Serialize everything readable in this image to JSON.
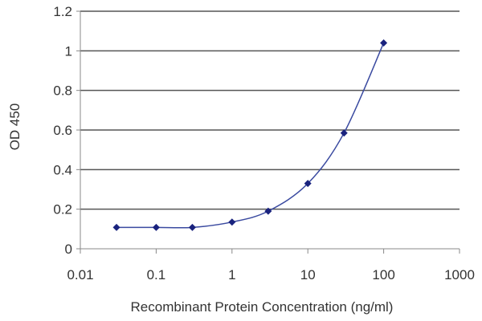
{
  "chart_data": {
    "type": "line",
    "title": "",
    "xlabel": "Recombinant Protein Concentration (ng/ml)",
    "ylabel": "OD 450",
    "x_scale": "log",
    "xlim": [
      0.01,
      1000
    ],
    "ylim": [
      0,
      1.2
    ],
    "x_ticks": [
      "0.01",
      "0.1",
      "1",
      "10",
      "100",
      "1000"
    ],
    "y_ticks": [
      "0",
      "0.2",
      "0.4",
      "0.6",
      "0.8",
      "1",
      "1.2"
    ],
    "grid": "horizontal",
    "series": [
      {
        "x": [
          0.03,
          0.1,
          0.3,
          1,
          3,
          10,
          30,
          100
        ],
        "y": [
          0.108,
          0.108,
          0.108,
          0.135,
          0.19,
          0.33,
          0.585,
          1.04
        ]
      }
    ],
    "colors": {
      "line": "#3a4aa0",
      "marker": "#1a237e",
      "grid": "#555555",
      "axis": "#888888"
    }
  }
}
